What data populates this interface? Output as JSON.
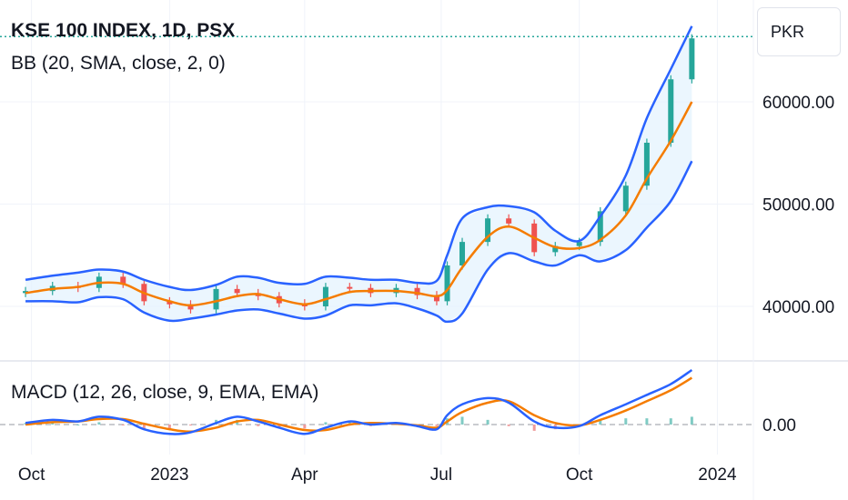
{
  "header": {
    "title": "KSE 100 INDEX, 1D, PSX",
    "bb_label": "BB (20, SMA, close, 2, 0)",
    "macd_label": "MACD (12, 26, close, 9, EMA, EMA)",
    "currency": "PKR"
  },
  "colors": {
    "up": "#26a69a",
    "down": "#ef5350",
    "bb_basis": "#f57c00",
    "bb_band": "#2962ff",
    "bb_fill": "#e3f2fd",
    "macd_line": "#2962ff",
    "signal_line": "#f57c00",
    "grid": "#f0f3fa",
    "last_price_line": "#26a69a"
  },
  "chart_data": [
    {
      "type": "line",
      "panel": "price",
      "title": "KSE 100 INDEX, 1D, PSX",
      "indicator": "BB (20, SMA, close, 2, 0)",
      "x_ticks": [
        "Oct",
        "2023",
        "Apr",
        "Jul",
        "Oct",
        "2024"
      ],
      "y_ticks": [
        "40000.00",
        "50000.00",
        "60000.00"
      ],
      "ylim": [
        34000,
        69000
      ],
      "x": [
        "2022-09-27",
        "2022-10-15",
        "2022-11-01",
        "2022-11-15",
        "2022-12-01",
        "2022-12-15",
        "2023-01-01",
        "2023-01-15",
        "2023-02-01",
        "2023-02-15",
        "2023-03-01",
        "2023-03-15",
        "2023-04-01",
        "2023-04-15",
        "2023-05-01",
        "2023-05-15",
        "2023-06-01",
        "2023-06-15",
        "2023-06-28",
        "2023-07-05",
        "2023-07-15",
        "2023-08-01",
        "2023-08-15",
        "2023-09-01",
        "2023-09-15",
        "2023-10-01",
        "2023-10-15",
        "2023-11-01",
        "2023-11-15",
        "2023-12-01",
        "2023-12-15"
      ],
      "series": [
        {
          "name": "close",
          "values": [
            41500,
            42000,
            41800,
            42900,
            42200,
            40500,
            40200,
            39700,
            41700,
            41300,
            41000,
            40300,
            40000,
            41900,
            41800,
            41300,
            41800,
            41100,
            40500,
            44000,
            46300,
            48600,
            48100,
            45300,
            45900,
            46300,
            49300,
            51800,
            56000,
            62200,
            66200
          ]
        },
        {
          "name": "basis",
          "values": [
            41300,
            41700,
            41900,
            42300,
            42200,
            41300,
            40500,
            40100,
            40500,
            41000,
            41200,
            40700,
            40200,
            40700,
            41400,
            41500,
            41500,
            41300,
            41000,
            41600,
            43800,
            46800,
            47800,
            46700,
            45800,
            45700,
            46500,
            48900,
            52500,
            56200,
            60000
          ]
        },
        {
          "name": "upper",
          "values": [
            42600,
            43000,
            43300,
            43600,
            43400,
            42600,
            41900,
            41600,
            42100,
            42900,
            42800,
            42300,
            42200,
            42900,
            42800,
            42600,
            42600,
            42300,
            42500,
            45000,
            48600,
            49700,
            49800,
            49200,
            47400,
            46400,
            48800,
            52800,
            58400,
            63200,
            67400
          ]
        },
        {
          "name": "lower",
          "values": [
            40500,
            40500,
            40400,
            40900,
            40700,
            39400,
            38600,
            38800,
            39200,
            39600,
            39700,
            39300,
            38800,
            39100,
            40100,
            40100,
            40300,
            39800,
            39100,
            38500,
            39300,
            43600,
            45200,
            44400,
            44000,
            45000,
            44400,
            45500,
            47700,
            50300,
            54200
          ]
        }
      ]
    },
    {
      "type": "line",
      "panel": "macd",
      "title": "MACD (12, 26, close, 9, EMA, EMA)",
      "y_ticks": [
        "0.00"
      ],
      "x": [
        "2022-09-27",
        "2022-10-15",
        "2022-11-01",
        "2022-11-15",
        "2022-12-01",
        "2022-12-15",
        "2023-01-01",
        "2023-01-15",
        "2023-02-01",
        "2023-02-15",
        "2023-03-01",
        "2023-03-15",
        "2023-04-01",
        "2023-04-15",
        "2023-05-01",
        "2023-05-15",
        "2023-06-01",
        "2023-06-15",
        "2023-06-28",
        "2023-07-05",
        "2023-07-15",
        "2023-08-01",
        "2023-08-15",
        "2023-09-01",
        "2023-09-15",
        "2023-10-01",
        "2023-10-15",
        "2023-11-01",
        "2023-11-15",
        "2023-12-01",
        "2023-12-15"
      ],
      "series": [
        {
          "name": "macd",
          "values": [
            100,
            300,
            200,
            500,
            300,
            -300,
            -600,
            -500,
            100,
            500,
            200,
            -200,
            -600,
            -200,
            200,
            0,
            100,
            -100,
            -300,
            600,
            1300,
            1700,
            1400,
            200,
            -200,
            -100,
            600,
            1300,
            1900,
            2600,
            3500
          ]
        },
        {
          "name": "signal",
          "values": [
            0,
            150,
            200,
            350,
            350,
            50,
            -300,
            -450,
            -200,
            200,
            300,
            0,
            -350,
            -350,
            0,
            100,
            50,
            -50,
            -200,
            200,
            800,
            1400,
            1500,
            600,
            100,
            -50,
            300,
            900,
            1500,
            2200,
            3000
          ]
        }
      ],
      "histogram": [
        100,
        150,
        0,
        150,
        -50,
        -350,
        -300,
        -50,
        300,
        300,
        -100,
        -200,
        -250,
        150,
        200,
        -100,
        50,
        -50,
        -100,
        400,
        500,
        300,
        -100,
        -400,
        -300,
        -50,
        300,
        400,
        400,
        400,
        500
      ]
    }
  ]
}
